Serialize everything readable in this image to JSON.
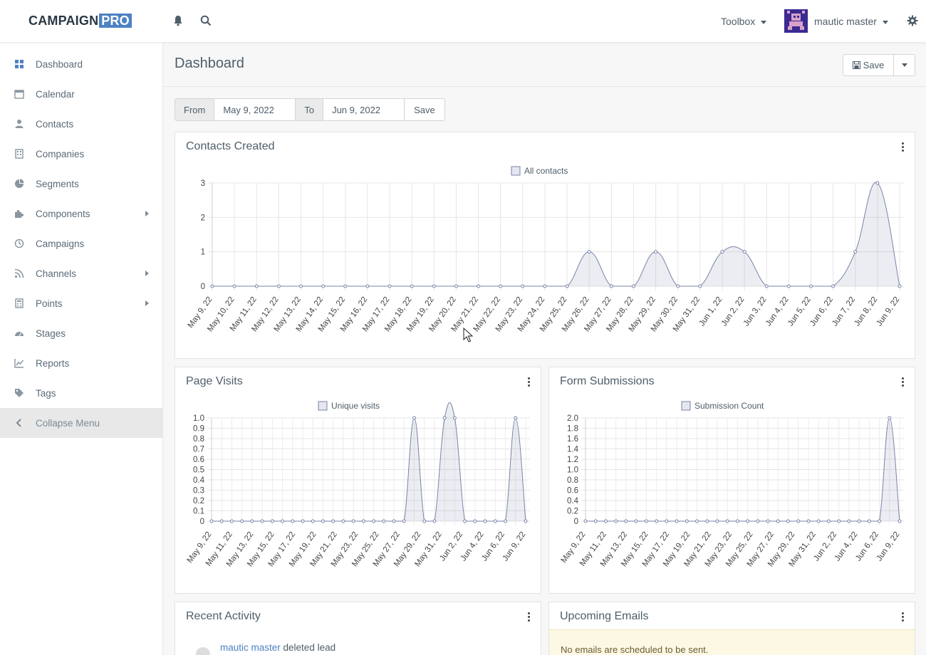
{
  "app": {
    "logo_main": "CAMPAIGN",
    "logo_accent": "PRO",
    "accent_color": "#4d82c3"
  },
  "header": {
    "toolbox_label": "Toolbox",
    "user_name": "mautic master"
  },
  "sidebar": {
    "items": [
      {
        "label": "Dashboard",
        "icon": "dashboard-icon",
        "submenu": false
      },
      {
        "label": "Calendar",
        "icon": "calendar-icon",
        "submenu": false
      },
      {
        "label": "Contacts",
        "icon": "user-icon",
        "submenu": false
      },
      {
        "label": "Companies",
        "icon": "building-icon",
        "submenu": false
      },
      {
        "label": "Segments",
        "icon": "pie-icon",
        "submenu": false
      },
      {
        "label": "Components",
        "icon": "puzzle-icon",
        "submenu": true
      },
      {
        "label": "Campaigns",
        "icon": "clock-icon",
        "submenu": false
      },
      {
        "label": "Channels",
        "icon": "rss-icon",
        "submenu": true
      },
      {
        "label": "Points",
        "icon": "calculator-icon",
        "submenu": true
      },
      {
        "label": "Stages",
        "icon": "tachometer-icon",
        "submenu": false
      },
      {
        "label": "Reports",
        "icon": "line-chart-icon",
        "submenu": false
      },
      {
        "label": "Tags",
        "icon": "tag-icon",
        "submenu": false
      }
    ],
    "collapse_label": "Collapse Menu"
  },
  "page": {
    "title": "Dashboard",
    "save_label": "Save"
  },
  "date_range": {
    "from_label": "From",
    "from_value": "May 9, 2022",
    "to_label": "To",
    "to_value": "Jun 9, 2022",
    "apply_label": "Save"
  },
  "widgets": {
    "contacts_created": {
      "title": "Contacts Created"
    },
    "page_visits": {
      "title": "Page Visits"
    },
    "form_submissions": {
      "title": "Form Submissions"
    },
    "recent_activity": {
      "title": "Recent Activity",
      "entry_user": "mautic master",
      "entry_action": " deleted lead"
    },
    "upcoming_emails": {
      "title": "Upcoming Emails",
      "empty_message": "No emails are scheduled to be sent."
    }
  },
  "chart_data": [
    {
      "type": "area",
      "title": "Contacts Created",
      "series": [
        {
          "name": "All contacts",
          "values": [
            0,
            0,
            0,
            0,
            0,
            0,
            0,
            0,
            0,
            0,
            0,
            0,
            0,
            0,
            0,
            0,
            0,
            1,
            0,
            0,
            1,
            0,
            0,
            1,
            1,
            0,
            0,
            0,
            0,
            1,
            3,
            0
          ]
        }
      ],
      "x": [
        "May 9, 22",
        "May 10, 22",
        "May 11, 22",
        "May 12, 22",
        "May 13, 22",
        "May 14, 22",
        "May 15, 22",
        "May 16, 22",
        "May 17, 22",
        "May 18, 22",
        "May 19, 22",
        "May 20, 22",
        "May 21, 22",
        "May 22, 22",
        "May 23, 22",
        "May 24, 22",
        "May 25, 22",
        "May 26, 22",
        "May 27, 22",
        "May 28, 22",
        "May 29, 22",
        "May 30, 22",
        "May 31, 22",
        "Jun 1, 22",
        "Jun 2, 22",
        "Jun 3, 22",
        "Jun 4, 22",
        "Jun 5, 22",
        "Jun 6, 22",
        "Jun 7, 22",
        "Jun 8, 22",
        "Jun 9, 22"
      ],
      "yticks": [
        "0",
        "1",
        "2",
        "3"
      ],
      "ylim": [
        0,
        3
      ],
      "grid": true,
      "legend": "top-center",
      "color": "#7a83a8"
    },
    {
      "type": "area",
      "title": "Page Visits",
      "series": [
        {
          "name": "Unique visits",
          "values": [
            0,
            0,
            0,
            0,
            0,
            0,
            0,
            0,
            0,
            0,
            0,
            0,
            0,
            0,
            0,
            0,
            0,
            0,
            0,
            0,
            1,
            0,
            0,
            1,
            1,
            0,
            0,
            0,
            0,
            0,
            1,
            0
          ]
        }
      ],
      "xticks": [
        "May 9, 22",
        "May 11, 22",
        "May 13, 22",
        "May 15, 22",
        "May 17, 22",
        "May 19, 22",
        "May 21, 22",
        "May 23, 22",
        "May 25, 22",
        "May 27, 22",
        "May 29, 22",
        "May 31, 22",
        "Jun 2, 22",
        "Jun 4, 22",
        "Jun 6, 22",
        "Jun 9, 22"
      ],
      "yticks": [
        "0",
        "0.1",
        "0.2",
        "0.3",
        "0.4",
        "0.5",
        "0.6",
        "0.7",
        "0.8",
        "0.9",
        "1.0"
      ],
      "ylim": [
        0,
        1
      ],
      "grid": true,
      "legend": "top-center",
      "color": "#7a83a8"
    },
    {
      "type": "area",
      "title": "Form Submissions",
      "series": [
        {
          "name": "Submission Count",
          "values": [
            0,
            0,
            0,
            0,
            0,
            0,
            0,
            0,
            0,
            0,
            0,
            0,
            0,
            0,
            0,
            0,
            0,
            0,
            0,
            0,
            0,
            0,
            0,
            0,
            0,
            0,
            0,
            0,
            0,
            0,
            2,
            0
          ]
        }
      ],
      "xticks": [
        "May 9, 22",
        "May 11, 22",
        "May 13, 22",
        "May 15, 22",
        "May 17, 22",
        "May 19, 22",
        "May 21, 22",
        "May 23, 22",
        "May 25, 22",
        "May 27, 22",
        "May 29, 22",
        "May 31, 22",
        "Jun 2, 22",
        "Jun 4, 22",
        "Jun 6, 22",
        "Jun 9, 22"
      ],
      "yticks": [
        "0",
        "0.2",
        "0.4",
        "0.6",
        "0.8",
        "1.0",
        "1.2",
        "1.4",
        "1.6",
        "1.8",
        "2.0"
      ],
      "ylim": [
        0,
        2
      ],
      "grid": true,
      "legend": "top-center",
      "color": "#7a83a8"
    }
  ]
}
